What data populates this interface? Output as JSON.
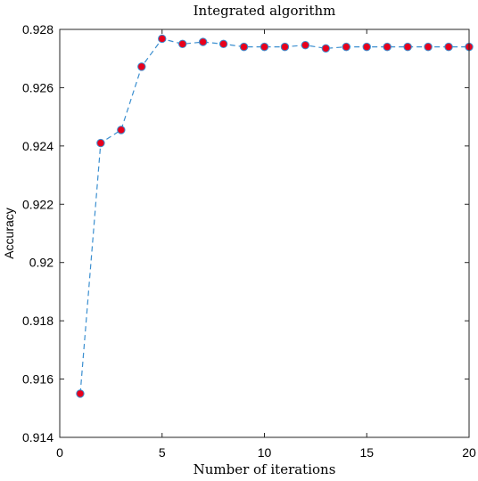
{
  "chart_data": {
    "type": "line",
    "title": "Integrated algorithm",
    "xlabel": "Number of iterations",
    "ylabel": "Accuracy",
    "xlim": [
      0,
      20
    ],
    "ylim": [
      0.914,
      0.928
    ],
    "xticks": [
      0,
      5,
      10,
      15,
      20
    ],
    "xtick_labels": [
      "0",
      "5",
      "10",
      "15",
      "20"
    ],
    "yticks": [
      0.914,
      0.916,
      0.918,
      0.92,
      0.922,
      0.924,
      0.926,
      0.928
    ],
    "ytick_labels": [
      "0.914",
      "0.916",
      "0.918",
      "0.92",
      "0.922",
      "0.924",
      "0.926",
      "0.928"
    ],
    "grid": false,
    "line_color": "#3b8fd0",
    "line_style": "dashed",
    "marker_face_color": "#e8001c",
    "marker_edge_color": "#3b8fd0",
    "series": [
      {
        "x": [
          1,
          2,
          3,
          4,
          5,
          6,
          7,
          8,
          9,
          10,
          11,
          12,
          13,
          14,
          15,
          16,
          17,
          18,
          19,
          20
        ],
        "values": [
          0.9155,
          0.9241,
          0.92455,
          0.92672,
          0.92768,
          0.9275,
          0.92757,
          0.9275,
          0.9274,
          0.9274,
          0.9274,
          0.92746,
          0.92735,
          0.9274,
          0.9274,
          0.9274,
          0.9274,
          0.9274,
          0.9274,
          0.9274
        ]
      }
    ]
  }
}
